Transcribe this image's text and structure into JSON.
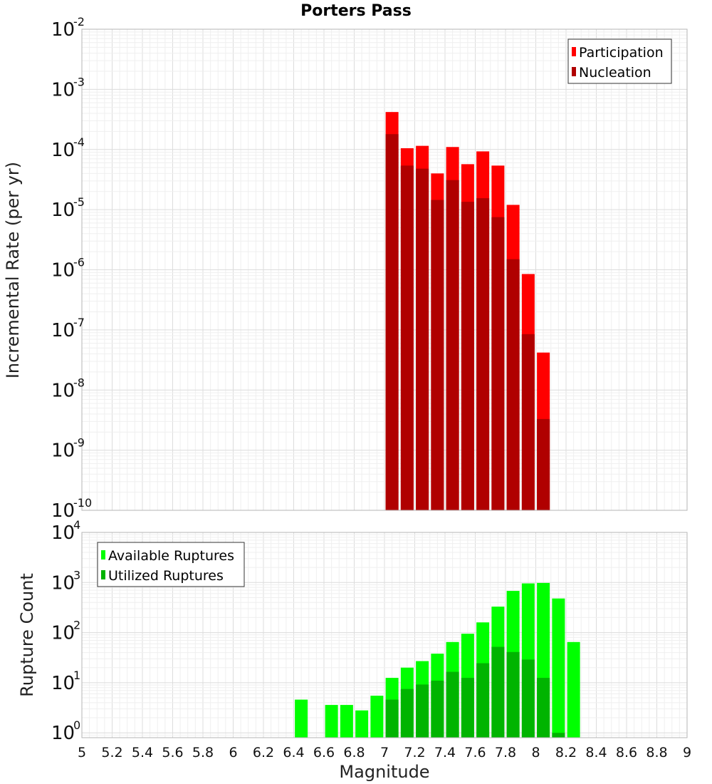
{
  "chart_data": [
    {
      "type": "bar",
      "title": "Porters Pass",
      "xlabel": "",
      "ylabel": "Incremental Rate (per yr)",
      "yscale": "log",
      "ylim": [
        1e-10,
        0.01
      ],
      "xlim": [
        5,
        9
      ],
      "grid": true,
      "legend_position": "top-right",
      "x": [
        7.05,
        7.15,
        7.25,
        7.35,
        7.45,
        7.55,
        7.65,
        7.75,
        7.85,
        7.95,
        8.05
      ],
      "series": [
        {
          "name": "Participation",
          "color": "#ff0000",
          "values": [
            0.00042,
            0.000105,
            0.000115,
            4e-05,
            0.00011,
            5.7e-05,
            9.3e-05,
            5.4e-05,
            1.2e-05,
            8.5e-07,
            4.2e-08
          ]
        },
        {
          "name": "Nucleation",
          "color": "#b00000",
          "values": [
            0.00018,
            5.4e-05,
            4.8e-05,
            1.45e-05,
            3.1e-05,
            1.35e-05,
            1.55e-05,
            7.5e-06,
            1.5e-06,
            8.5e-08,
            3.3e-09
          ]
        }
      ]
    },
    {
      "type": "bar",
      "title": "",
      "xlabel": "Magnitude",
      "ylabel": "Rupture Count",
      "yscale": "log",
      "ylim": [
        0.8,
        10000
      ],
      "xlim": [
        5,
        9
      ],
      "grid": true,
      "legend_position": "top-left",
      "x_ticks": [
        "5",
        "5.2",
        "5.4",
        "5.6",
        "5.8",
        "6",
        "6.2",
        "6.4",
        "6.6",
        "6.8",
        "7",
        "7.2",
        "7.4",
        "7.6",
        "7.8",
        "8",
        "8.2",
        "8.4",
        "8.6",
        "8.8",
        "9"
      ],
      "x": [
        6.45,
        6.65,
        6.75,
        6.85,
        6.95,
        7.05,
        7.15,
        7.25,
        7.35,
        7.45,
        7.55,
        7.65,
        7.75,
        7.85,
        7.95,
        8.05,
        8.15,
        8.25
      ],
      "series": [
        {
          "name": "Available Ruptures",
          "color": "#00ff00",
          "values": [
            4.6,
            3.6,
            3.6,
            2.8,
            5.5,
            12.5,
            20,
            27,
            38,
            65,
            95,
            160,
            330,
            680,
            960,
            980,
            480,
            65
          ]
        },
        {
          "name": "Utilized Ruptures",
          "color": "#00b400",
          "values": [
            0,
            0,
            0,
            0,
            0,
            4.6,
            7.5,
            9.2,
            11,
            16.5,
            12.5,
            24.5,
            52,
            41,
            29,
            12.5,
            1,
            0
          ]
        }
      ]
    }
  ]
}
